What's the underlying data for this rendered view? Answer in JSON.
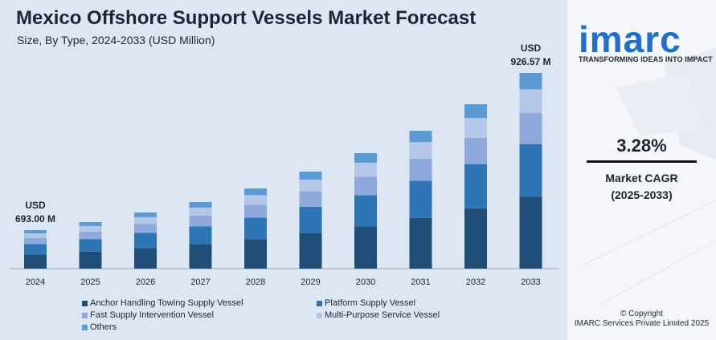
{
  "header": {
    "title": "Mexico Offshore Support Vessels Market Forecast",
    "subtitle": "Size, By Type, 2024-2033 (USD Million)"
  },
  "chart_data": {
    "type": "bar",
    "stacked": true,
    "title": "Mexico Offshore Support Vessels Market Forecast",
    "subtitle": "Size, By Type, 2024-2033 (USD Million)",
    "categories": [
      "2024",
      "2025",
      "2026",
      "2027",
      "2028",
      "2029",
      "2030",
      "2031",
      "2032",
      "2033"
    ],
    "totals": [
      693.0,
      716.0,
      740.0,
      764.0,
      789.0,
      815.0,
      842.0,
      869.0,
      898.0,
      926.57
    ],
    "series": [
      {
        "name": "Anchor Handling Towing Supply Vessel",
        "color": "#1f4e79",
        "values": [
          254,
          262,
          271,
          280,
          289,
          299,
          309,
          319,
          329,
          340
        ]
      },
      {
        "name": "Platform Supply Vessel",
        "color": "#2e75b6",
        "values": [
          187,
          193,
          200,
          206,
          213,
          220,
          227,
          235,
          242,
          250
        ]
      },
      {
        "name": "Fast Supply Intervention Vessel",
        "color": "#8fa9dc",
        "values": [
          111,
          115,
          118,
          122,
          126,
          130,
          135,
          139,
          144,
          148
        ]
      },
      {
        "name": "Multi-Purpose Service Vessel",
        "color": "#b4c7e7",
        "values": [
          83,
          86,
          89,
          92,
          95,
          98,
          101,
          104,
          108,
          111
        ]
      },
      {
        "name": "Others",
        "color": "#5b9bd5",
        "values": [
          58,
          60,
          62,
          64,
          66,
          68,
          70,
          72,
          75,
          77.57
        ]
      }
    ],
    "annotations": [
      {
        "category": "2024",
        "currency": "USD",
        "value": "693.00 M"
      },
      {
        "category": "2033",
        "currency": "USD",
        "value": "926.57 M"
      }
    ],
    "grid": false,
    "legend_position": "bottom"
  },
  "sidebar": {
    "logo": "imarc",
    "tagline": "TRANSFORMING IDEAS INTO IMPACT",
    "cagr_value": "3.28%",
    "cagr_label": "Market CAGR",
    "cagr_period": "(2025-2033)",
    "copyright": "© Copyright",
    "company": "IMARC Services Private Limited 2025"
  }
}
